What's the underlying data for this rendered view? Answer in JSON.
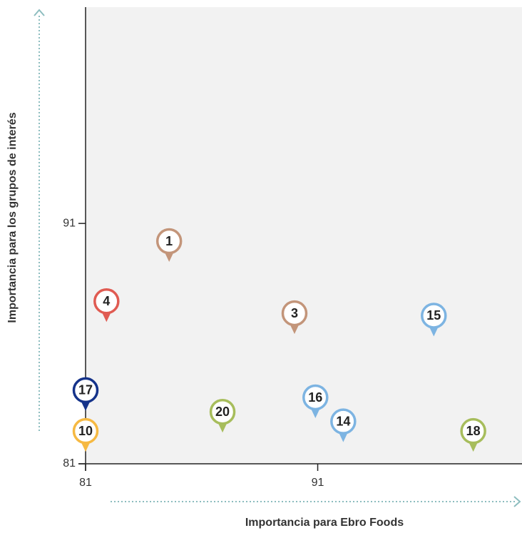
{
  "chart_data": {
    "type": "scatter",
    "x_label": "Importancia para Ebro Foods",
    "y_label": "Importancia para los grupos de interés",
    "labels": [
      "1",
      "4",
      "3",
      "15",
      "17",
      "20",
      "16",
      "14",
      "18",
      "10"
    ],
    "x": [
      84.6,
      81.9,
      90.0,
      96.0,
      81,
      86.9,
      90.9,
      92.1,
      97.7,
      81
    ],
    "y": [
      89.4,
      86.9,
      86.4,
      86.3,
      83.2,
      82.3,
      82.9,
      81.9,
      81.5,
      81.5
    ],
    "colors": [
      "#c3957a",
      "#e05b52",
      "#c3957a",
      "#7db4e2",
      "#15338a",
      "#a7bd5c",
      "#7db4e2",
      "#7db4e2",
      "#a7bd5c",
      "#f6b942"
    ],
    "xlim": [
      81,
      99.8
    ],
    "ylim": [
      81,
      100
    ],
    "xticks": [
      81,
      91
    ],
    "yticks": [
      81,
      91
    ]
  }
}
